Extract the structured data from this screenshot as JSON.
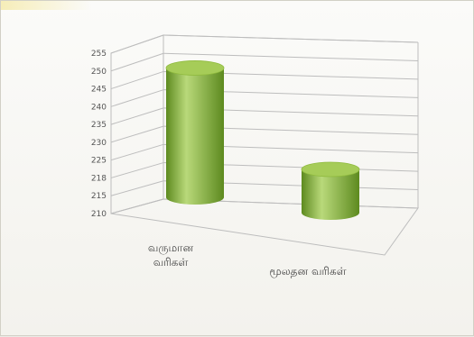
{
  "chart_data": {
    "type": "bar",
    "style": "3d-cylinder",
    "categories": [
      [
        "வருமான",
        "வரிகள்"
      ],
      [
        "மூலதன",
        "வரிகள்"
      ]
    ],
    "values": [
      248,
      222
    ],
    "yticks": [
      210,
      215,
      218,
      225,
      230,
      235,
      240,
      245,
      250,
      255
    ],
    "ylim": [
      210,
      255
    ],
    "grid": true,
    "legend": false,
    "colors": {
      "bar_light": "#b9d97a",
      "bar_mid": "#8fba3e",
      "bar_dark": "#5d8a1f",
      "bar_top": "#a6cc58",
      "grid": "#bdbdbd"
    }
  }
}
